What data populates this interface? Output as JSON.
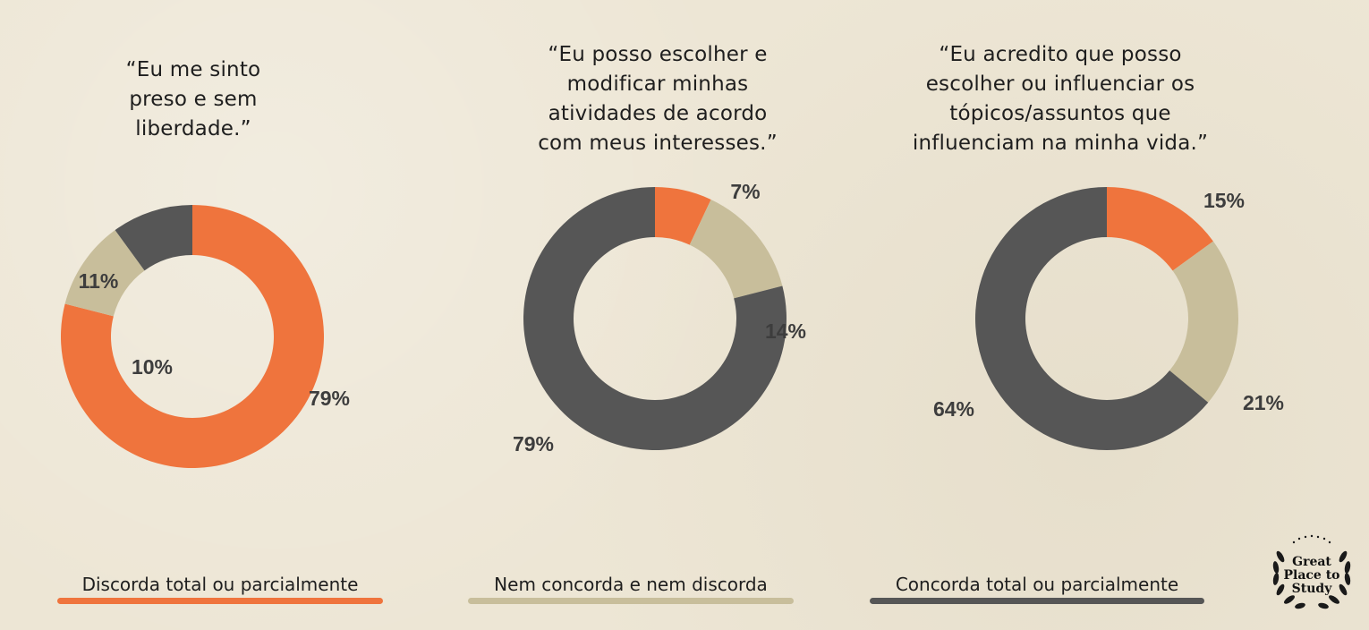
{
  "chart_data": [
    {
      "type": "donut",
      "question": "“Eu me sinto\npreso e sem\nliberdade.”",
      "slices": [
        {
          "label": "Discorda total ou parcialmente",
          "value": 79,
          "display": "79%"
        },
        {
          "label": "Nem concorda e nem discorda",
          "value": 11,
          "display": "11%"
        },
        {
          "label": "Concorda total ou parcialmente",
          "value": 10,
          "display": "10%"
        }
      ]
    },
    {
      "type": "donut",
      "question": "“Eu posso escolher e\nmodificar minhas\natividades de acordo\ncom meus interesses.”",
      "slices": [
        {
          "label": "Discorda total ou parcialmente",
          "value": 7,
          "display": "7%"
        },
        {
          "label": "Nem concorda e nem discorda",
          "value": 14,
          "display": "14%"
        },
        {
          "label": "Concorda total ou parcialmente",
          "value": 79,
          "display": "79%"
        }
      ]
    },
    {
      "type": "donut",
      "question": "“Eu acredito que posso\nescolher ou influenciar os\ntópicos/assuntos que\ninfluenciam na minha vida.”",
      "slices": [
        {
          "label": "Discorda total ou parcialmente",
          "value": 15,
          "display": "15%"
        },
        {
          "label": "Nem concorda e nem discorda",
          "value": 21,
          "display": "21%"
        },
        {
          "label": "Concorda total ou parcialmente",
          "value": 64,
          "display": "64%"
        }
      ]
    }
  ],
  "legend": [
    {
      "label": "Discorda total ou parcialmente",
      "color": "#ef743d"
    },
    {
      "label": "Nem concorda e nem discorda",
      "color": "#c8be9b"
    },
    {
      "label": "Concorda total ou parcialmente",
      "color": "#565656"
    }
  ],
  "logo": {
    "line1": "Great",
    "line2": "Place to",
    "line3": "Study"
  }
}
